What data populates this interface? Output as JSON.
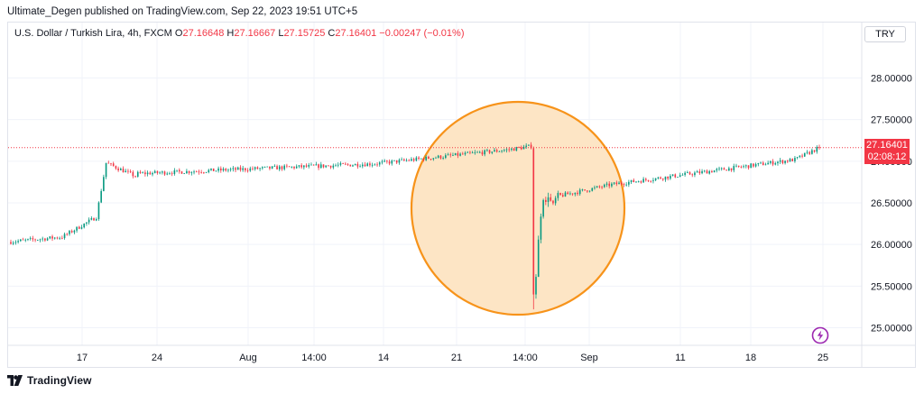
{
  "publisher_text": "Ultimate_Degen published on TradingView.com, Sep 22, 2023 19:51 UTC+5",
  "symbol": {
    "name": "U.S. Dollar / Turkish Lira, 4h, FXCM",
    "open_label": "O",
    "open": "27.16648",
    "high_label": "H",
    "high": "27.16667",
    "low_label": "L",
    "low": "27.15725",
    "close_label": "C",
    "close": "27.16401",
    "change": "−0.00247 (−0.01%)"
  },
  "currency": "TRY",
  "last_price": {
    "value": "27.16401",
    "countdown": "02:08:12"
  },
  "footer_brand": "TradingView",
  "icons": {
    "footer": "tradingview-logo-icon",
    "lightning": "lightning-bolt-icon"
  },
  "colors": {
    "up": "#089981",
    "down": "#f23645",
    "highlight_fill": "#fde5c5",
    "highlight_stroke": "#f7931a",
    "bolt": "#9c27b0"
  },
  "chart_data": {
    "type": "candlestick",
    "y_axis": {
      "ticks": [
        "28.00000",
        "27.50000",
        "27.00000",
        "26.50000",
        "26.00000",
        "25.50000",
        "25.00000"
      ],
      "range": [
        24.83,
        28.35
      ]
    },
    "x_axis": {
      "ticks": [
        "17",
        "24",
        "Aug",
        "14:00",
        "14",
        "21",
        "14:00",
        "Sep",
        "11",
        "18",
        "25"
      ]
    },
    "series": [
      {
        "from": 0,
        "to": 22,
        "start": 26.03,
        "end": 26.09
      },
      {
        "from": 22,
        "to": 36,
        "start": 26.09,
        "end": 26.33
      },
      {
        "from": 36,
        "to": 40,
        "start": 26.33,
        "end": 26.98
      },
      {
        "from": 40,
        "to": 52,
        "start": 26.98,
        "end": 26.82
      },
      {
        "from": 52,
        "to": 150,
        "start": 26.85,
        "end": 26.97
      },
      {
        "from": 150,
        "to": 205,
        "start": 26.97,
        "end": 27.14
      },
      {
        "from": 205,
        "to": 214,
        "start": 27.14,
        "end": 27.18
      }
    ],
    "crash_low": 25.22,
    "crash_close": 25.4,
    "recovery_to": 26.55,
    "final_close": 27.16401,
    "annotation": "highlight-circle-around-crash"
  }
}
